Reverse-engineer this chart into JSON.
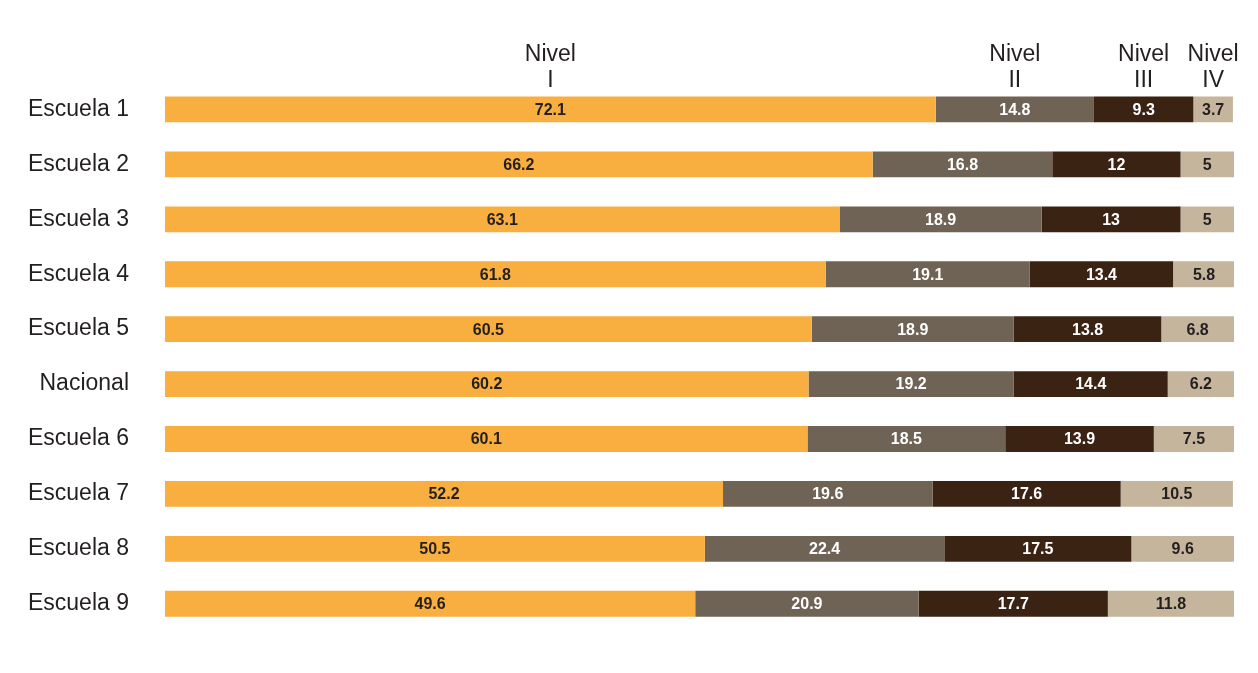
{
  "chart_data": {
    "type": "bar",
    "orientation": "horizontal",
    "stacked": true,
    "data_labels": true,
    "grid": false,
    "tick_labels": "y",
    "xlim": [
      0,
      100
    ],
    "categories": [
      "Escuela 1",
      "Escuela 2",
      "Escuela 3",
      "Escuela 4",
      "Escuela 5",
      "Nacional",
      "Escuela 6",
      "Escuela 7",
      "Escuela 8",
      "Escuela 9"
    ],
    "series": [
      {
        "name": "Nivel I",
        "color": "#f9ae40",
        "values": [
          72.1,
          66.2,
          63.1,
          61.8,
          60.5,
          60.2,
          60.1,
          52.2,
          50.5,
          49.6
        ]
      },
      {
        "name": "Nivel II",
        "color": "#6e6355",
        "values": [
          14.8,
          16.8,
          18.9,
          19.1,
          18.9,
          19.2,
          18.5,
          19.6,
          22.4,
          20.9
        ]
      },
      {
        "name": "Nivel III",
        "color": "#3b2314",
        "values": [
          9.3,
          12,
          13,
          13.4,
          13.8,
          14.4,
          13.9,
          17.6,
          17.5,
          17.7
        ]
      },
      {
        "name": "Nivel IV",
        "color": "#c4b59c",
        "values": [
          3.7,
          5,
          5,
          5.8,
          6.8,
          6.2,
          7.5,
          10.5,
          9.6,
          11.8
        ]
      }
    ]
  }
}
